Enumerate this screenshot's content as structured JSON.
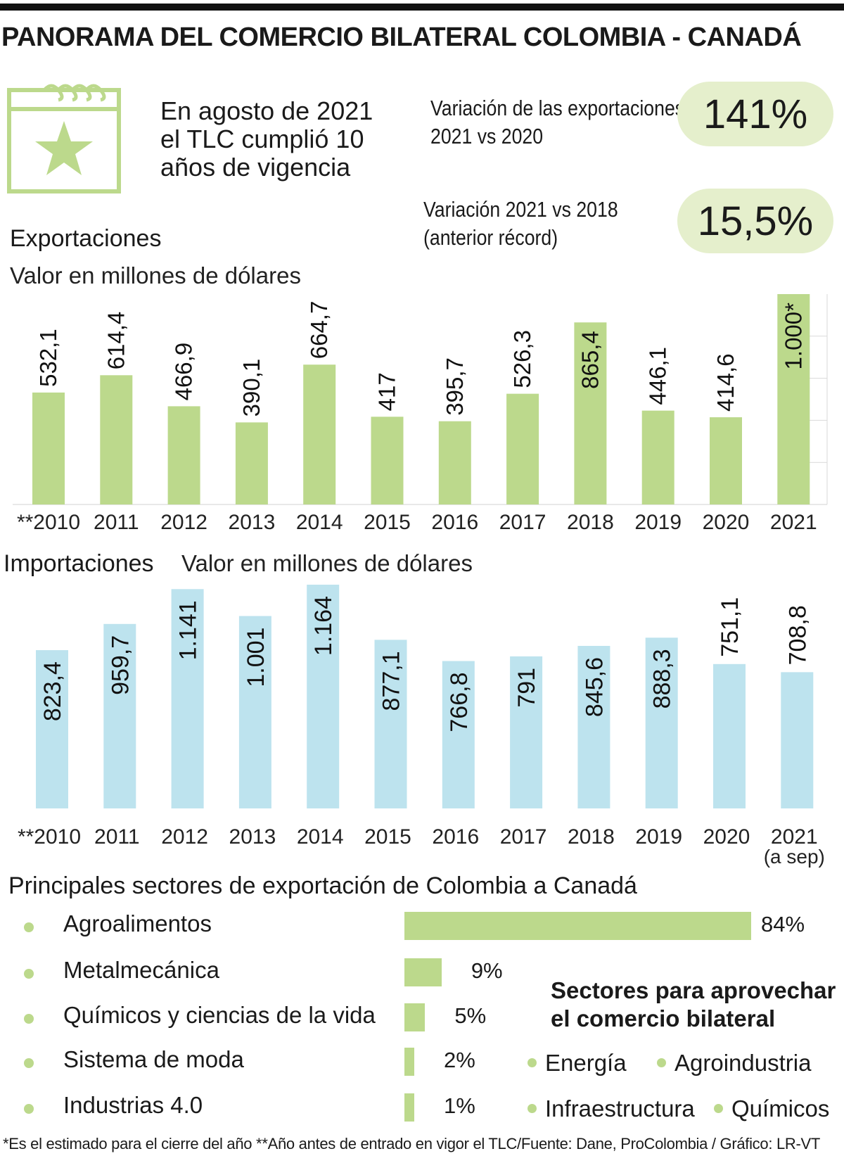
{
  "title": "PANORAMA DEL COMERCIO BILATERAL COLOMBIA - CANADÁ",
  "icon": "calendar-star-icon",
  "intro_lines": [
    "En agosto de 2021",
    "el TLC cumplió 10",
    "años de vigencia"
  ],
  "kpis": [
    {
      "label_lines": [
        "Variación de las exportaciones",
        "2021 vs 2020"
      ],
      "value": "141%"
    },
    {
      "label_lines": [
        "Variación 2021 vs 2018",
        "(anterior récord)"
      ],
      "value": "15,5%"
    }
  ],
  "colors": {
    "green": "#bcd98c",
    "blue": "#bde3ee",
    "pill": "#e5efcc",
    "dark": "#111111"
  },
  "chart_data": [
    {
      "type": "bar",
      "title": "Exportaciones",
      "ylabel": "Valor en millones de dólares",
      "categories": [
        "**2010",
        "2011",
        "2012",
        "2013",
        "2014",
        "2015",
        "2016",
        "2017",
        "2018",
        "2019",
        "2020",
        "2021"
      ],
      "values": [
        532.1,
        614.4,
        466.9,
        390.1,
        664.7,
        417,
        395.7,
        526.3,
        865.4,
        446.1,
        414.6,
        1000
      ],
      "labels": [
        "532,1",
        "614,4",
        "466,9",
        "390,1",
        "664,7",
        "417",
        "395,7",
        "526,3",
        "865,4",
        "446,1",
        "414,6",
        "1.000*"
      ],
      "ylim": [
        0,
        1000
      ],
      "grid": true
    },
    {
      "type": "bar",
      "title": "Importaciones",
      "ylabel": "Valor en millones de dólares",
      "categories": [
        "**2010",
        "2011",
        "2012",
        "2013",
        "2014",
        "2015",
        "2016",
        "2017",
        "2018",
        "2019",
        "2020",
        "2021"
      ],
      "category_notes": [
        "",
        "",
        "",
        "",
        "",
        "",
        "",
        "",
        "",
        "",
        "",
        "(a sep)"
      ],
      "values": [
        823.4,
        959.7,
        1141,
        1001,
        1164,
        877.1,
        766.8,
        791,
        845.6,
        888.3,
        751.1,
        708.8
      ],
      "labels": [
        "823,4",
        "959,7",
        "1.141",
        "1.001",
        "1.164",
        "877,1",
        "766,8",
        "791",
        "845,6",
        "888,3",
        "751,1",
        "708,8"
      ],
      "ylim": [
        0,
        1164
      ]
    },
    {
      "type": "bar",
      "orientation": "horizontal",
      "title": "Principales sectores de exportación de Colombia a Canadá",
      "categories": [
        "Agroalimentos",
        "Metalmecánica",
        "Químicos y ciencias de la vida",
        "Sistema de moda",
        "Industrias 4.0"
      ],
      "values": [
        84,
        9,
        5,
        2,
        1
      ],
      "labels": [
        "84%",
        "9%",
        "5%",
        "2%",
        "1%"
      ],
      "unit": "%"
    }
  ],
  "opportunities": {
    "title_lines": [
      "Sectores para aprovechar",
      "el comercio bilateral"
    ],
    "items": [
      "Energía",
      "Agroindustria",
      "Infraestructura",
      "Químicos"
    ]
  },
  "footnote": "*Es el estimado para el cierre del año **Año antes de entrado en vigor el TLC/Fuente: Dane, ProColombia / Gráfico: LR-VT"
}
